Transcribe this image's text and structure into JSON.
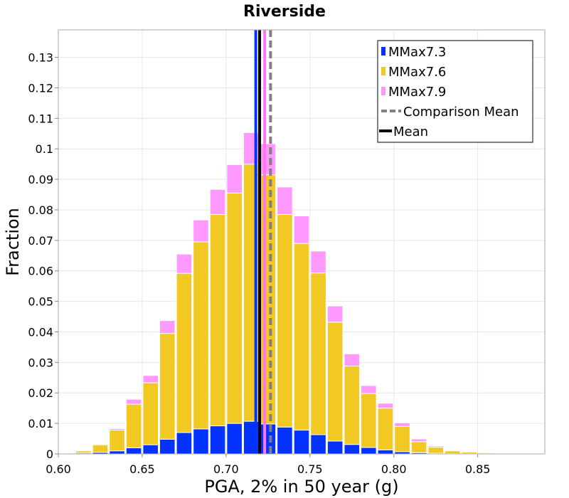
{
  "chart_data": {
    "type": "bar",
    "stacked": true,
    "title": "Riverside",
    "xlabel": "PGA, 2% in 50 year (g)",
    "ylabel": "Fraction",
    "xlim": [
      0.6,
      0.89
    ],
    "ylim": [
      0,
      0.139
    ],
    "xticks": [
      "0.60",
      "0.65",
      "0.70",
      "0.75",
      "0.80",
      "0.85"
    ],
    "yticks": [
      "0",
      "0.01",
      "0.02",
      "0.03",
      "0.04",
      "0.05",
      "0.06",
      "0.07",
      "0.08",
      "0.09",
      "0.1",
      "0.11",
      "0.12",
      "0.13"
    ],
    "grid": true,
    "legend_position": "top-right",
    "bin_width": 0.01,
    "bin_starts": [
      0.6,
      0.61,
      0.62,
      0.63,
      0.64,
      0.65,
      0.66,
      0.67,
      0.68,
      0.69,
      0.7,
      0.71,
      0.72,
      0.73,
      0.74,
      0.75,
      0.76,
      0.77,
      0.78,
      0.79,
      0.8,
      0.81,
      0.82,
      0.83,
      0.84,
      0.85,
      0.86,
      0.87,
      0.88
    ],
    "series": [
      {
        "name": "MMax7.3",
        "color": "#0433ff",
        "values": [
          0.0001,
          0.0003,
          0.0005,
          0.001,
          0.002,
          0.003,
          0.0048,
          0.007,
          0.0082,
          0.0092,
          0.01,
          0.0107,
          0.0098,
          0.0088,
          0.0078,
          0.0063,
          0.0042,
          0.0031,
          0.0021,
          0.0013,
          0.0007,
          0.0004,
          0.0002,
          0.0001,
          0.0001,
          0.0,
          0.0,
          0.0,
          0.0
        ]
      },
      {
        "name": "MMax7.6",
        "color": "#f2c822",
        "values": [
          0.0002,
          0.0007,
          0.0025,
          0.0068,
          0.0143,
          0.0203,
          0.0347,
          0.0522,
          0.0613,
          0.0693,
          0.0755,
          0.0843,
          0.0817,
          0.0697,
          0.0612,
          0.053,
          0.039,
          0.0257,
          0.0177,
          0.0137,
          0.0083,
          0.0036,
          0.002,
          0.0009,
          0.0005,
          0.0003,
          0.0002,
          0.0001,
          0.0001
        ]
      },
      {
        "name": "MMax7.9",
        "color": "#ff99ff",
        "values": [
          0.0,
          0.0001,
          0.0002,
          0.0005,
          0.0016,
          0.0024,
          0.0042,
          0.0063,
          0.0072,
          0.0082,
          0.0093,
          0.0103,
          0.0102,
          0.009,
          0.009,
          0.0072,
          0.0053,
          0.004,
          0.0026,
          0.0016,
          0.0012,
          0.0009,
          0.0004,
          0.0002,
          0.0001,
          0.0001,
          0.0001,
          0.0001,
          0.0
        ]
      }
    ],
    "vertical_lines": [
      {
        "x": 0.7177,
        "color": "#0433ff",
        "style": "solid",
        "width": 4
      },
      {
        "x": 0.723,
        "color": "#ff77ee",
        "style": "solid",
        "width": 4
      },
      {
        "x": 0.72,
        "color": "#000000",
        "style": "solid",
        "width": 4
      },
      {
        "x": 0.7265,
        "color": "#808080",
        "style": "dashed",
        "width": 4
      }
    ],
    "legend": [
      {
        "label": "MMax7.3",
        "type": "square",
        "color": "#0433ff"
      },
      {
        "label": "MMax7.6",
        "type": "square",
        "color": "#f2c822"
      },
      {
        "label": "MMax7.9",
        "type": "square",
        "color": "#ff99ff"
      },
      {
        "label": "Comparison Mean",
        "type": "dashed-line",
        "color": "#808080"
      },
      {
        "label": "Mean",
        "type": "line",
        "color": "#000000"
      }
    ]
  }
}
